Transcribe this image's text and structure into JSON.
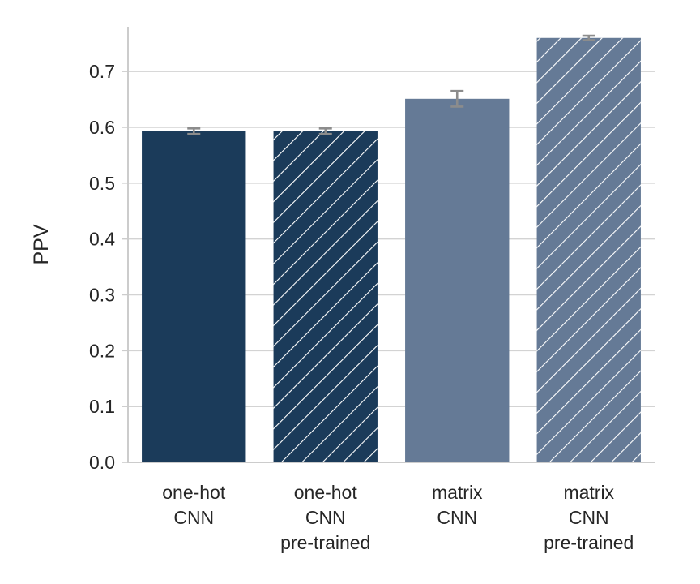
{
  "chart_data": {
    "type": "bar",
    "ylabel": "PPV",
    "ylim": [
      0,
      0.78
    ],
    "yticks": [
      "0.0",
      "0.1",
      "0.2",
      "0.3",
      "0.4",
      "0.5",
      "0.6",
      "0.7"
    ],
    "grid": "horizontal",
    "categories": [
      [
        "one-hot",
        "CNN"
      ],
      [
        "one-hot",
        "CNN",
        "pre-trained"
      ],
      [
        "matrix",
        "CNN"
      ],
      [
        "matrix",
        "CNN",
        "pre-trained"
      ]
    ],
    "values": [
      0.593,
      0.593,
      0.651,
      0.76
    ],
    "errors": [
      0.005,
      0.005,
      0.014,
      0.004
    ],
    "hatched": [
      false,
      true,
      false,
      true
    ],
    "colors": [
      "#1b3b5a",
      "#1b3b5a",
      "#657a96",
      "#657a96"
    ],
    "hatch_color": "#ffffff",
    "error_color": "#8c8c8c",
    "grid_color": "#d3d3d3",
    "axis_color": "#cccccc"
  }
}
